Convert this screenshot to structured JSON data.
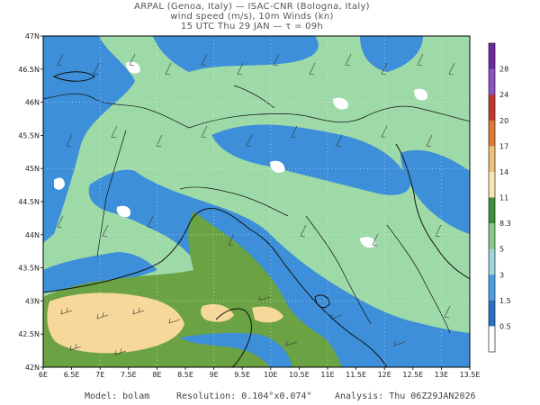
{
  "header": {
    "line1": "ARPAL (Genoa, Italy)  —  ISAC-CNR (Bologna, Italy)",
    "line2": "wind speed (m/s), 10m Winds (kn)",
    "line3": "15 UTC Thu 29 JAN  —  τ = 09h"
  },
  "map": {
    "lon_labels": [
      "6E",
      "6.5E",
      "7E",
      "7.5E",
      "8E",
      "8.5E",
      "9E",
      "9.5E",
      "10E",
      "10.5E",
      "11E",
      "11.5E",
      "12E",
      "12.5E",
      "13E",
      "13.5E"
    ],
    "lat_labels": [
      "47N",
      "46.5N",
      "46N",
      "45.5N",
      "45N",
      "44.5N",
      "44N",
      "43.5N",
      "43N",
      "42.5N",
      "42N"
    ],
    "lon_range": [
      6,
      13.5
    ],
    "lat_range": [
      42,
      47
    ],
    "colors": {
      "sea_fast": "#6aa244",
      "sea_faster": "#f5d89a",
      "land_moderate": "#9ed9a8",
      "slow": "#3c8fd8",
      "calm": "#ffffff",
      "medium_blue": "#2f7fd0"
    }
  },
  "colorbar": {
    "labels": [
      "28",
      "24",
      "20",
      "17",
      "14",
      "11",
      "8.3",
      "5",
      "3",
      "1.5",
      "0.5"
    ],
    "colors": [
      "#6e2aa0",
      "#8a55c0",
      "#c0392b",
      "#e07a35",
      "#f1c07a",
      "#f6e7b2",
      "#3e8f3e",
      "#86c98a",
      "#9fd6dc",
      "#4b9ee0",
      "#2a6fc4",
      "#ffffff"
    ]
  },
  "footer": {
    "model": "Model: bolam",
    "resolution": "Resolution: 0.104°x0.074°",
    "analysis": "Analysis: Thu 06Z29JAN2026"
  }
}
